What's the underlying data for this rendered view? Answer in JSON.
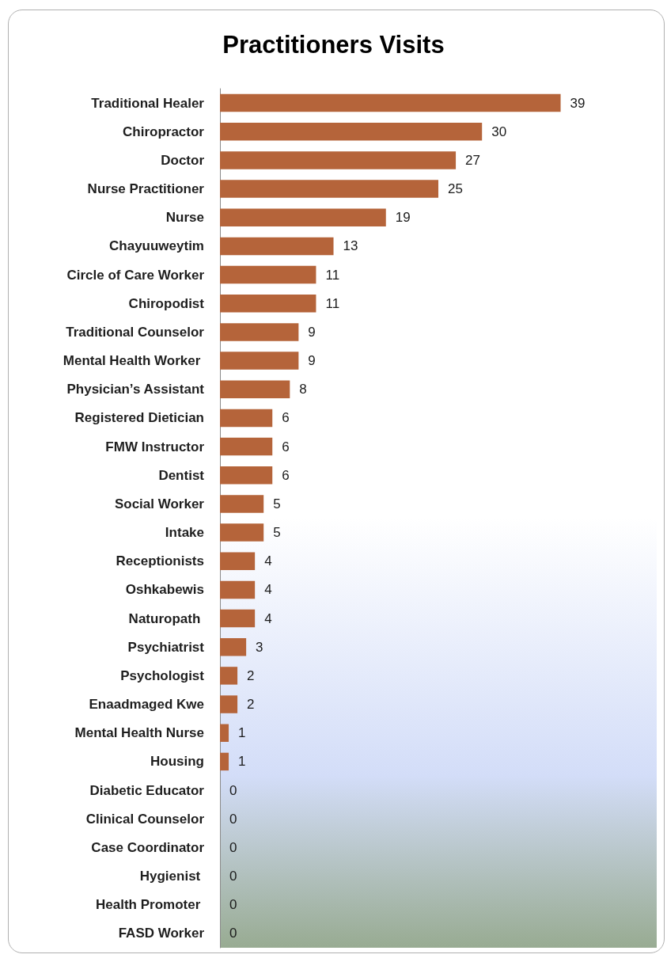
{
  "chart_data": {
    "type": "bar",
    "orientation": "horizontal",
    "title": "Practitioners Visits",
    "categories": [
      "Traditional Healer",
      "Chiropractor",
      "Doctor",
      "Nurse Practitioner",
      "Nurse",
      "Chayuuweytim",
      "Circle of Care Worker",
      "Chiropodist",
      "Traditional Counselor",
      "Mental Health Worker ",
      "Physician’s Assistant",
      "Registered Dietician",
      "FMW Instructor",
      "Dentist",
      "Social Worker",
      "Intake",
      "Receptionists",
      "Oshkabewis",
      "Naturopath ",
      "Psychiatrist",
      "Psychologist",
      "Enaadmaged Kwe",
      "Mental Health Nurse",
      "Housing",
      "Diabetic Educator",
      "Clinical Counselor",
      "Case Coordinator",
      "Hygienist ",
      "Health Promoter ",
      "FASD Worker"
    ],
    "values": [
      39,
      30,
      27,
      25,
      19,
      13,
      11,
      11,
      9,
      9,
      8,
      6,
      6,
      6,
      5,
      5,
      4,
      4,
      4,
      3,
      2,
      2,
      1,
      1,
      0,
      0,
      0,
      0,
      0,
      0
    ],
    "color": "#b5643a",
    "xlim": [
      0,
      50
    ],
    "tick_labels": "y",
    "data_labels": true
  }
}
